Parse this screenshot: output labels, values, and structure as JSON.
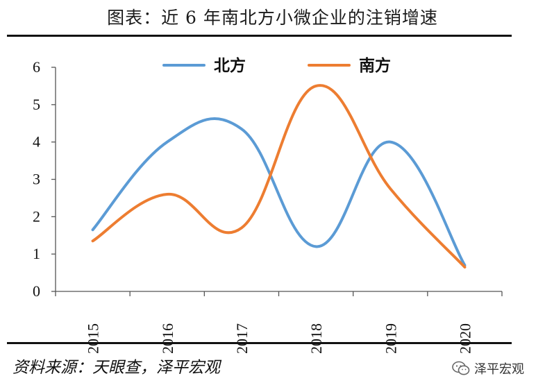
{
  "header": {
    "title": "图表：近 6 年南北方小微企业的注销增速"
  },
  "footer": {
    "source": "资料来源：天眼查，泽平宏观",
    "watermark": "泽平宏观"
  },
  "colors": {
    "north": "#5b9bd5",
    "south": "#ed7d31"
  },
  "chart_data": {
    "type": "line",
    "title": "图表：近 6 年南北方小微企业的注销增速",
    "categories": [
      "2015",
      "2016",
      "2017",
      "2018",
      "2019",
      "2020"
    ],
    "series": [
      {
        "name": "北方",
        "color": "#5b9bd5",
        "values": [
          1.65,
          4.0,
          4.35,
          1.2,
          4.0,
          0.7
        ]
      },
      {
        "name": "南方",
        "color": "#ed7d31",
        "values": [
          1.35,
          2.6,
          1.7,
          5.5,
          2.75,
          0.65
        ]
      }
    ],
    "yticks": [
      "0",
      "1",
      "2",
      "3",
      "4",
      "5",
      "6"
    ],
    "ylim": [
      0,
      6
    ],
    "smooth": true,
    "legend": "top"
  }
}
